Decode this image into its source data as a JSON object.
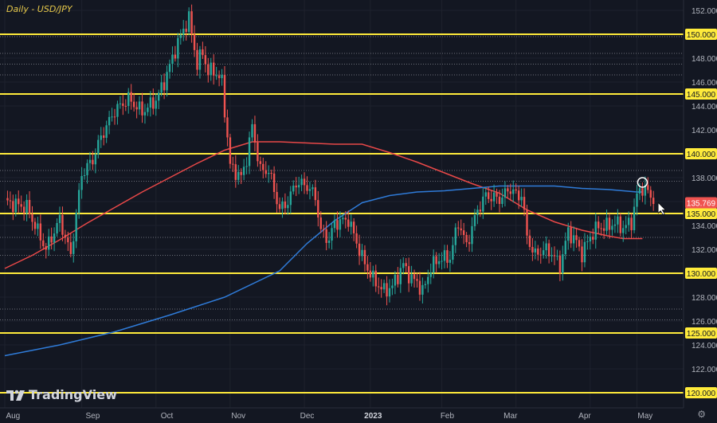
{
  "chart_data": {
    "type": "candlestick",
    "title": "Daily - USD/JPY",
    "symbol": "USD/JPY",
    "timeframe": "Daily",
    "ylim": [
      119.5,
      153.3
    ],
    "y_ticks": [
      122,
      124,
      126,
      128,
      132,
      134,
      136,
      138,
      142,
      144,
      146,
      148,
      152
    ],
    "x_ticks": [
      "Aug",
      "Sep",
      "Oct",
      "Nov",
      "Dec",
      "2023",
      "Feb",
      "Mar",
      "Apr",
      "May"
    ],
    "horizontal_levels": [
      {
        "label": "150.000",
        "value": 150
      },
      {
        "label": "145.000",
        "value": 145
      },
      {
        "label": "140.000",
        "value": 140
      },
      {
        "label": "135.000",
        "value": 135
      },
      {
        "label": "130.000",
        "value": 130
      },
      {
        "label": "125.000",
        "value": 125
      },
      {
        "label": "120.000",
        "value": 120
      }
    ],
    "dotted_levels": [
      149.8,
      148.4,
      147.5,
      146.6,
      138.6,
      137.7,
      133.0,
      131.5,
      127.0,
      126.1
    ],
    "current_price": {
      "label": "135.769",
      "value": 135.769
    },
    "price_path": [
      [
        0,
        136.0
      ],
      [
        8,
        135.5
      ],
      [
        15,
        132.0
      ],
      [
        20,
        134.5
      ],
      [
        24,
        131.5
      ],
      [
        28,
        138.3
      ],
      [
        32,
        139.5
      ],
      [
        35,
        141.4
      ],
      [
        40,
        143.6
      ],
      [
        45,
        144.6
      ],
      [
        50,
        143.5
      ],
      [
        55,
        144.5
      ],
      [
        58,
        146.0
      ],
      [
        62,
        148.7
      ],
      [
        65,
        150.4
      ],
      [
        67,
        151.3
      ],
      [
        70,
        147.5
      ],
      [
        72,
        148.5
      ],
      [
        74,
        146.8
      ],
      [
        76,
        147.0
      ],
      [
        79,
        146.0
      ],
      [
        82,
        139.0
      ],
      [
        86,
        138.0
      ],
      [
        88,
        139.6
      ],
      [
        90,
        142.3
      ],
      [
        93,
        138.6
      ],
      [
        96,
        138.6
      ],
      [
        100,
        135.3
      ],
      [
        103,
        136.0
      ],
      [
        106,
        137.6
      ],
      [
        110,
        137.3
      ],
      [
        113,
        136.4
      ],
      [
        115,
        133.5
      ],
      [
        118,
        132.8
      ],
      [
        120,
        134.2
      ],
      [
        125,
        134.5
      ],
      [
        130,
        131.3
      ],
      [
        134,
        129.5
      ],
      [
        138,
        128.5
      ],
      [
        141,
        128.9
      ],
      [
        145,
        130.7
      ],
      [
        148,
        129.5
      ],
      [
        150,
        129.3
      ],
      [
        152,
        128.4
      ],
      [
        155,
        130.5
      ],
      [
        158,
        131.2
      ],
      [
        162,
        131.3
      ],
      [
        165,
        134.3
      ],
      [
        168,
        132.3
      ],
      [
        172,
        135.3
      ],
      [
        175,
        136.5
      ],
      [
        180,
        136.2
      ],
      [
        184,
        137.1
      ],
      [
        187,
        136.3
      ],
      [
        188,
        136.8
      ],
      [
        190,
        133.0
      ],
      [
        193,
        131.5
      ],
      [
        196,
        132.0
      ],
      [
        199,
        131.7
      ],
      [
        202,
        130.6
      ],
      [
        205,
        133.5
      ],
      [
        208,
        132.6
      ],
      [
        210,
        131.6
      ],
      [
        213,
        133.1
      ],
      [
        216,
        133.9
      ],
      [
        219,
        133.9
      ],
      [
        222,
        134.2
      ],
      [
        225,
        133.8
      ],
      [
        228,
        134.3
      ],
      [
        230,
        136.5
      ],
      [
        232,
        137.2
      ],
      [
        234,
        136.8
      ],
      [
        236,
        135.8
      ]
    ],
    "series": [
      {
        "name": "MA red",
        "color": "#e84848",
        "values": [
          [
            0,
            130.4
          ],
          [
            10,
            131.5
          ],
          [
            20,
            132.8
          ],
          [
            30,
            134.2
          ],
          [
            40,
            135.5
          ],
          [
            50,
            136.8
          ],
          [
            60,
            138.0
          ],
          [
            70,
            139.2
          ],
          [
            80,
            140.3
          ],
          [
            90,
            141.0
          ],
          [
            100,
            141.0
          ],
          [
            110,
            140.9
          ],
          [
            120,
            140.8
          ],
          [
            130,
            140.8
          ],
          [
            140,
            140.1
          ],
          [
            150,
            139.3
          ],
          [
            160,
            138.4
          ],
          [
            170,
            137.5
          ],
          [
            180,
            136.7
          ],
          [
            190,
            135.3
          ],
          [
            200,
            134.3
          ],
          [
            210,
            133.6
          ],
          [
            220,
            133.1
          ],
          [
            225,
            132.9
          ],
          [
            232,
            132.9
          ]
        ]
      },
      {
        "name": "MA blue",
        "color": "#2f7bd8",
        "values": [
          [
            0,
            123.1
          ],
          [
            20,
            124.0
          ],
          [
            40,
            125.1
          ],
          [
            60,
            126.5
          ],
          [
            80,
            128.0
          ],
          [
            100,
            130.2
          ],
          [
            110,
            132.5
          ],
          [
            120,
            134.4
          ],
          [
            130,
            135.9
          ],
          [
            140,
            136.5
          ],
          [
            150,
            136.8
          ],
          [
            160,
            136.9
          ],
          [
            170,
            137.1
          ],
          [
            180,
            137.3
          ],
          [
            190,
            137.3
          ],
          [
            200,
            137.3
          ],
          [
            210,
            137.1
          ],
          [
            220,
            137.0
          ],
          [
            230,
            136.8
          ],
          [
            232,
            136.8
          ]
        ]
      }
    ]
  },
  "watermark": {
    "brand": "TradingView"
  },
  "icons": {
    "settings": "gear-icon"
  }
}
